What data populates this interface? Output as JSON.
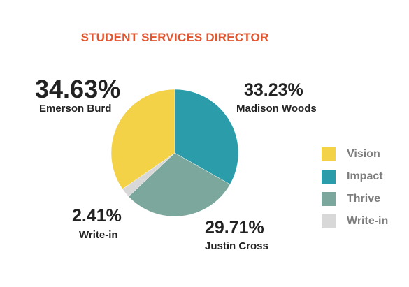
{
  "chart_data": {
    "type": "pie",
    "title": "STUDENT SERVICES DIRECTOR",
    "slices": [
      {
        "label": "Vision",
        "candidate": "Emerson Burd",
        "value": 34.63,
        "value_label": "34.63%",
        "color": "#f4d247"
      },
      {
        "label": "Impact",
        "candidate": "Madison Woods",
        "value": 33.23,
        "value_label": "33.23%",
        "color": "#2a9caa"
      },
      {
        "label": "Thrive",
        "candidate": "Justin Cross",
        "value": 29.71,
        "value_label": "29.71%",
        "color": "#7ca79c"
      },
      {
        "label": "Write-in",
        "candidate": "Write-in",
        "value": 2.41,
        "value_label": "2.41%",
        "color": "#d8d8d8"
      }
    ],
    "legend": {
      "placement": "right",
      "items": [
        "Vision",
        "Impact",
        "Thrive",
        "Write-in"
      ]
    }
  }
}
